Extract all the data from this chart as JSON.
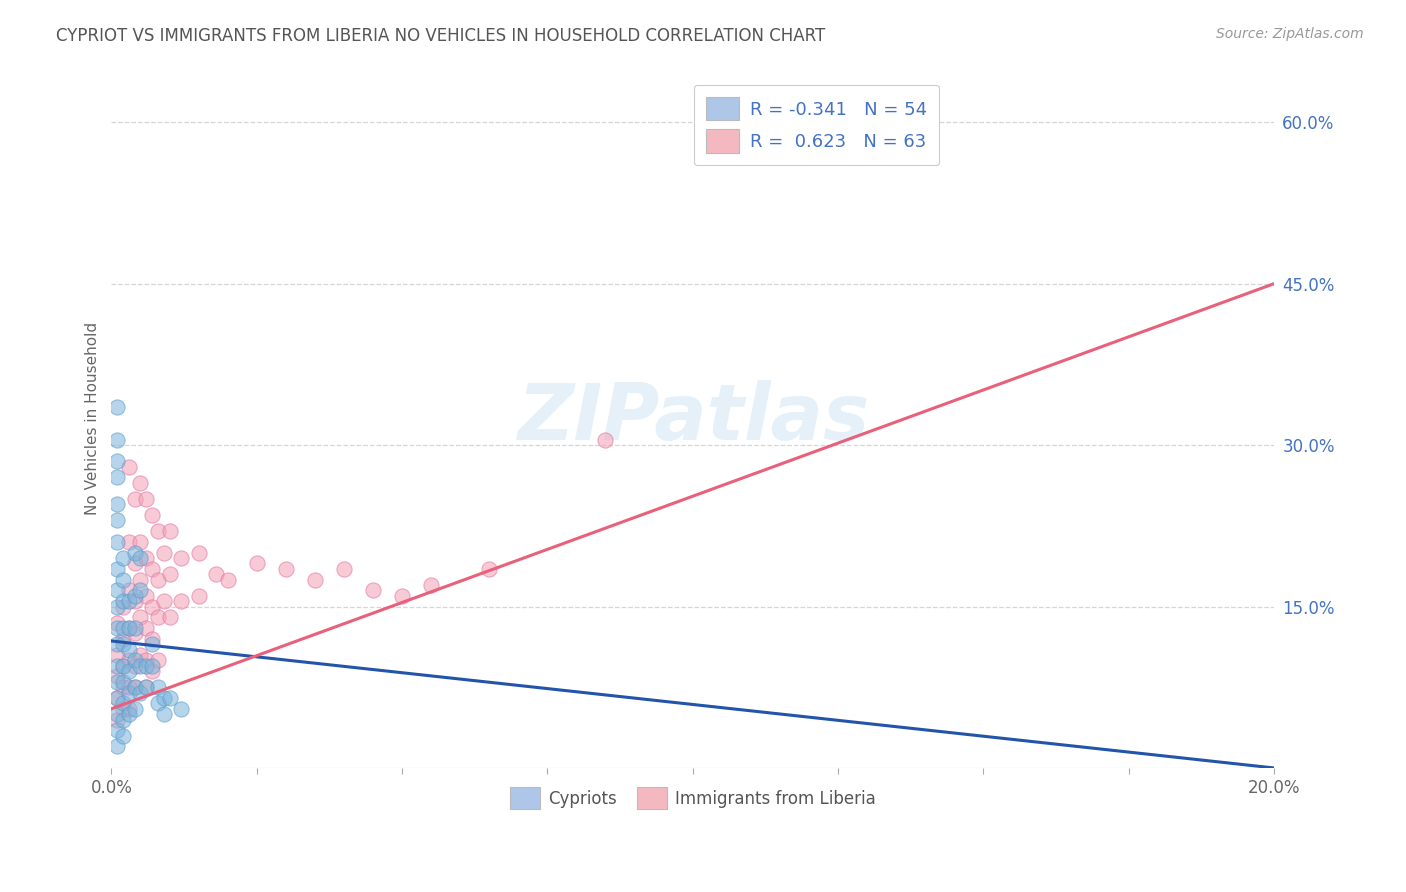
{
  "title": "CYPRIOT VS IMMIGRANTS FROM LIBERIA NO VEHICLES IN HOUSEHOLD CORRELATION CHART",
  "source": "Source: ZipAtlas.com",
  "ylabel": "No Vehicles in Household",
  "xlim": [
    0.0,
    0.2
  ],
  "ylim": [
    0.0,
    0.65
  ],
  "xticks": [
    0.0,
    0.025,
    0.05,
    0.075,
    0.1,
    0.125,
    0.15,
    0.175,
    0.2
  ],
  "yticks_right": [
    0.15,
    0.3,
    0.45,
    0.6
  ],
  "ytick_right_labels": [
    "15.0%",
    "30.0%",
    "45.0%",
    "60.0%"
  ],
  "legend_entries": [
    {
      "label": "R = -0.341   N = 54",
      "facecolor": "#aec6e8"
    },
    {
      "label": "R =  0.623   N = 63",
      "facecolor": "#f4b8c1"
    }
  ],
  "bottom_legend": [
    "Cypriots",
    "Immigrants from Liberia"
  ],
  "blue_scatter_color": "#7ab4db",
  "pink_scatter_color": "#f4a0b5",
  "blue_line_color": "#2255aa",
  "pink_line_color": "#e8607a",
  "watermark": "ZIPatlas",
  "blue_dots": [
    [
      0.001,
      0.335
    ],
    [
      0.001,
      0.305
    ],
    [
      0.001,
      0.285
    ],
    [
      0.001,
      0.27
    ],
    [
      0.001,
      0.245
    ],
    [
      0.001,
      0.23
    ],
    [
      0.001,
      0.21
    ],
    [
      0.001,
      0.185
    ],
    [
      0.001,
      0.165
    ],
    [
      0.001,
      0.15
    ],
    [
      0.001,
      0.13
    ],
    [
      0.001,
      0.115
    ],
    [
      0.001,
      0.095
    ],
    [
      0.001,
      0.08
    ],
    [
      0.001,
      0.065
    ],
    [
      0.001,
      0.05
    ],
    [
      0.001,
      0.035
    ],
    [
      0.001,
      0.02
    ],
    [
      0.002,
      0.195
    ],
    [
      0.002,
      0.175
    ],
    [
      0.002,
      0.155
    ],
    [
      0.002,
      0.13
    ],
    [
      0.002,
      0.115
    ],
    [
      0.002,
      0.095
    ],
    [
      0.002,
      0.08
    ],
    [
      0.002,
      0.06
    ],
    [
      0.002,
      0.045
    ],
    [
      0.002,
      0.03
    ],
    [
      0.003,
      0.155
    ],
    [
      0.003,
      0.13
    ],
    [
      0.003,
      0.11
    ],
    [
      0.003,
      0.09
    ],
    [
      0.003,
      0.07
    ],
    [
      0.003,
      0.05
    ],
    [
      0.004,
      0.2
    ],
    [
      0.004,
      0.16
    ],
    [
      0.004,
      0.13
    ],
    [
      0.004,
      0.1
    ],
    [
      0.004,
      0.075
    ],
    [
      0.004,
      0.055
    ],
    [
      0.005,
      0.195
    ],
    [
      0.005,
      0.165
    ],
    [
      0.005,
      0.095
    ],
    [
      0.005,
      0.07
    ],
    [
      0.006,
      0.095
    ],
    [
      0.006,
      0.075
    ],
    [
      0.007,
      0.115
    ],
    [
      0.007,
      0.095
    ],
    [
      0.008,
      0.075
    ],
    [
      0.008,
      0.06
    ],
    [
      0.009,
      0.065
    ],
    [
      0.009,
      0.05
    ],
    [
      0.01,
      0.065
    ],
    [
      0.012,
      0.055
    ]
  ],
  "pink_dots": [
    [
      0.001,
      0.135
    ],
    [
      0.001,
      0.105
    ],
    [
      0.001,
      0.085
    ],
    [
      0.001,
      0.065
    ],
    [
      0.001,
      0.045
    ],
    [
      0.002,
      0.15
    ],
    [
      0.002,
      0.12
    ],
    [
      0.002,
      0.095
    ],
    [
      0.002,
      0.075
    ],
    [
      0.002,
      0.055
    ],
    [
      0.003,
      0.28
    ],
    [
      0.003,
      0.21
    ],
    [
      0.003,
      0.165
    ],
    [
      0.003,
      0.13
    ],
    [
      0.003,
      0.1
    ],
    [
      0.003,
      0.075
    ],
    [
      0.003,
      0.055
    ],
    [
      0.004,
      0.25
    ],
    [
      0.004,
      0.19
    ],
    [
      0.004,
      0.155
    ],
    [
      0.004,
      0.125
    ],
    [
      0.004,
      0.095
    ],
    [
      0.004,
      0.075
    ],
    [
      0.005,
      0.265
    ],
    [
      0.005,
      0.21
    ],
    [
      0.005,
      0.175
    ],
    [
      0.005,
      0.14
    ],
    [
      0.005,
      0.105
    ],
    [
      0.006,
      0.25
    ],
    [
      0.006,
      0.195
    ],
    [
      0.006,
      0.16
    ],
    [
      0.006,
      0.13
    ],
    [
      0.006,
      0.1
    ],
    [
      0.006,
      0.075
    ],
    [
      0.007,
      0.235
    ],
    [
      0.007,
      0.185
    ],
    [
      0.007,
      0.15
    ],
    [
      0.007,
      0.12
    ],
    [
      0.007,
      0.09
    ],
    [
      0.008,
      0.22
    ],
    [
      0.008,
      0.175
    ],
    [
      0.008,
      0.14
    ],
    [
      0.008,
      0.1
    ],
    [
      0.009,
      0.2
    ],
    [
      0.009,
      0.155
    ],
    [
      0.01,
      0.22
    ],
    [
      0.01,
      0.18
    ],
    [
      0.01,
      0.14
    ],
    [
      0.012,
      0.195
    ],
    [
      0.012,
      0.155
    ],
    [
      0.015,
      0.2
    ],
    [
      0.015,
      0.16
    ],
    [
      0.018,
      0.18
    ],
    [
      0.02,
      0.175
    ],
    [
      0.025,
      0.19
    ],
    [
      0.03,
      0.185
    ],
    [
      0.035,
      0.175
    ],
    [
      0.04,
      0.185
    ],
    [
      0.045,
      0.165
    ],
    [
      0.05,
      0.16
    ],
    [
      0.055,
      0.17
    ],
    [
      0.065,
      0.185
    ],
    [
      0.085,
      0.305
    ]
  ],
  "blue_line_x": [
    0.0,
    0.2
  ],
  "blue_line_y": [
    0.118,
    0.0
  ],
  "pink_line_x": [
    0.0,
    0.2
  ],
  "pink_line_y": [
    0.055,
    0.45
  ]
}
